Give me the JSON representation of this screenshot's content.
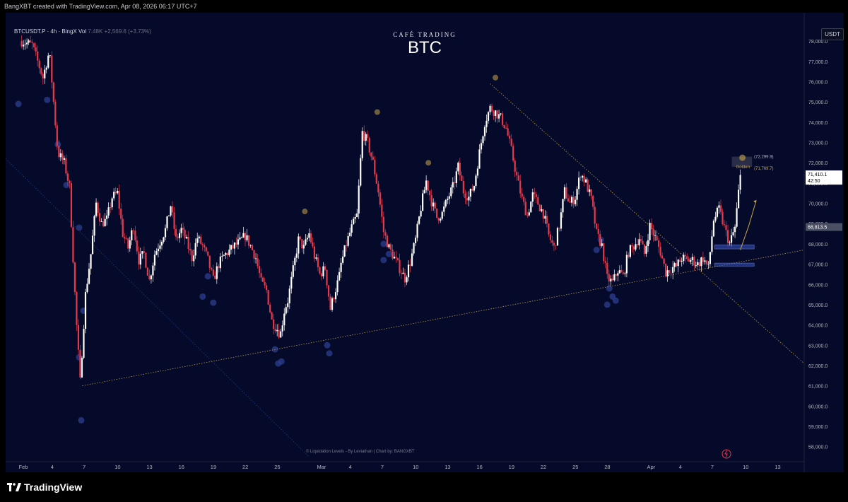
{
  "header": {
    "attribution": "BangXBT created with TradingView.com, Apr 08, 2026 06:17 UTC+7",
    "symbol": "BTCUSDT.P · 4h · BingX",
    "vol_label": "Vol",
    "vol_value": "7.48K",
    "change": "+2,569.6 (+3.73%)",
    "currency": "USDT"
  },
  "brand": {
    "small": "CAFÉ TRADING",
    "title": "BTC"
  },
  "footer": {
    "credits": "© Liquidation Levels - By Leviathan  |  Chart by: BANGXBT",
    "logo_text": "TradingView"
  },
  "colors": {
    "background": "#050a2a",
    "up": "#ffffff",
    "down": "#e6394a",
    "golden": "#c9a64a",
    "liquidity": "#2c3e8f",
    "zone": "#3a55c8"
  },
  "chart_data": {
    "type": "candlestick",
    "timeframe": "4h",
    "ylim": [
      57500,
      79400
    ],
    "y_ticks": [
      58000,
      59000,
      60000,
      61000,
      62000,
      63000,
      64000,
      65000,
      66000,
      67000,
      68000,
      69000,
      70000,
      71000,
      72000,
      73000,
      74000,
      75000,
      76000,
      77000,
      78000
    ],
    "y_tick_labels": [
      "58,000.0",
      "59,000.0",
      "60,000.0",
      "61,000.0",
      "62,000.0",
      "63,000.0",
      "64,000.0",
      "65,000.0",
      "66,000.0",
      "67,000.0",
      "68,000.0",
      "69,000.0",
      "70,000.0",
      "71,000.0",
      "72,000.0",
      "73,000.0",
      "74,000.0",
      "75,000.0",
      "76,000.0",
      "77,000.0",
      "78,000.0"
    ],
    "x_ticks": [
      {
        "label": "Feb",
        "day": 0
      },
      {
        "label": "4",
        "day": 3
      },
      {
        "label": "7",
        "day": 6
      },
      {
        "label": "10",
        "day": 9
      },
      {
        "label": "13",
        "day": 12
      },
      {
        "label": "16",
        "day": 15
      },
      {
        "label": "19",
        "day": 18
      },
      {
        "label": "22",
        "day": 21
      },
      {
        "label": "25",
        "day": 24
      },
      {
        "label": "Mar",
        "day": 28
      },
      {
        "label": "4",
        "day": 31
      },
      {
        "label": "7",
        "day": 34
      },
      {
        "label": "10",
        "day": 37
      },
      {
        "label": "13",
        "day": 40
      },
      {
        "label": "16",
        "day": 43
      },
      {
        "label": "19",
        "day": 46
      },
      {
        "label": "22",
        "day": 49
      },
      {
        "label": "25",
        "day": 52
      },
      {
        "label": "28",
        "day": 55
      },
      {
        "label": "Apr",
        "day": 59
      },
      {
        "label": "4",
        "day": 62
      },
      {
        "label": "7",
        "day": 65
      },
      {
        "label": "10",
        "day": 68
      },
      {
        "label": "13",
        "day": 71
      }
    ],
    "x_range_days": [
      -1.5,
      73.5
    ],
    "anchors": [
      [
        0,
        78000
      ],
      [
        1,
        77800
      ],
      [
        2,
        76200
      ],
      [
        2.6,
        77500
      ],
      [
        3.4,
        72500
      ],
      [
        4,
        72000
      ],
      [
        4.5,
        70800
      ],
      [
        5.1,
        64500
      ],
      [
        5.5,
        61200
      ],
      [
        6,
        65500
      ],
      [
        6.5,
        67500
      ],
      [
        7,
        70000
      ],
      [
        7.5,
        69000
      ],
      [
        8,
        69200
      ],
      [
        8.5,
        70300
      ],
      [
        9,
        70500
      ],
      [
        9.5,
        68500
      ],
      [
        10,
        67800
      ],
      [
        10.5,
        68900
      ],
      [
        11,
        67200
      ],
      [
        11.5,
        67500
      ],
      [
        12,
        66200
      ],
      [
        12.5,
        67500
      ],
      [
        13.5,
        68700
      ],
      [
        14,
        69900
      ],
      [
        14.5,
        68200
      ],
      [
        15,
        68700
      ],
      [
        15.5,
        68100
      ],
      [
        16,
        67300
      ],
      [
        16.5,
        68300
      ],
      [
        17,
        67900
      ],
      [
        17.5,
        67200
      ],
      [
        18,
        66200
      ],
      [
        18.5,
        67000
      ],
      [
        19,
        67400
      ],
      [
        20,
        67900
      ],
      [
        20.5,
        68100
      ],
      [
        21,
        68400
      ],
      [
        21.5,
        67900
      ],
      [
        22,
        67300
      ],
      [
        22.5,
        66100
      ],
      [
        23,
        65700
      ],
      [
        23.5,
        64200
      ],
      [
        24,
        63800
      ],
      [
        24.3,
        63500
      ],
      [
        24.7,
        64800
      ],
      [
        25,
        65200
      ],
      [
        25.5,
        66700
      ],
      [
        26,
        68200
      ],
      [
        26.5,
        67800
      ],
      [
        27,
        68500
      ],
      [
        27.5,
        67400
      ],
      [
        28,
        66500
      ],
      [
        28.5,
        66800
      ],
      [
        29,
        64800
      ],
      [
        29.4,
        65600
      ],
      [
        29.8,
        66300
      ],
      [
        30,
        67000
      ],
      [
        30.5,
        68000
      ],
      [
        31,
        68800
      ],
      [
        31.5,
        69400
      ],
      [
        32,
        73500
      ],
      [
        32.5,
        73000
      ],
      [
        33,
        72000
      ],
      [
        33.5,
        70600
      ],
      [
        34,
        68600
      ],
      [
        34.5,
        67800
      ],
      [
        35,
        67300
      ],
      [
        35.5,
        66800
      ],
      [
        36,
        66300
      ],
      [
        36.5,
        67100
      ],
      [
        37,
        68200
      ],
      [
        37.5,
        69800
      ],
      [
        38,
        71100
      ],
      [
        38.5,
        70100
      ],
      [
        39,
        69300
      ],
      [
        39.5,
        69500
      ],
      [
        40,
        70200
      ],
      [
        40.5,
        70800
      ],
      [
        41,
        71800
      ],
      [
        41.5,
        70600
      ],
      [
        42,
        70300
      ],
      [
        42.5,
        70900
      ],
      [
        43,
        72500
      ],
      [
        43.5,
        74000
      ],
      [
        44,
        74700
      ],
      [
        44.5,
        74500
      ],
      [
        45,
        74200
      ],
      [
        45.5,
        73700
      ],
      [
        46,
        72600
      ],
      [
        46.5,
        71300
      ],
      [
        47,
        70200
      ],
      [
        47.5,
        69400
      ],
      [
        48,
        70400
      ],
      [
        48.5,
        70000
      ],
      [
        49,
        69500
      ],
      [
        49.5,
        68400
      ],
      [
        50,
        67800
      ],
      [
        50.5,
        68900
      ],
      [
        51,
        70600
      ],
      [
        51.5,
        70000
      ],
      [
        52,
        70300
      ],
      [
        52.5,
        71500
      ],
      [
        53,
        71000
      ],
      [
        53.5,
        70200
      ],
      [
        54,
        68500
      ],
      [
        54.5,
        67900
      ],
      [
        55,
        66300
      ],
      [
        55.5,
        66100
      ],
      [
        56,
        66700
      ],
      [
        56.5,
        66400
      ],
      [
        57,
        67600
      ],
      [
        57.5,
        67900
      ],
      [
        58,
        68300
      ],
      [
        58.5,
        67500
      ],
      [
        59,
        68900
      ],
      [
        59.5,
        68300
      ],
      [
        60,
        67600
      ],
      [
        60.5,
        66600
      ],
      [
        61,
        66800
      ],
      [
        61.5,
        66900
      ],
      [
        62,
        67300
      ],
      [
        62.5,
        67200
      ],
      [
        63,
        67200
      ],
      [
        63.5,
        67000
      ],
      [
        64,
        67300
      ],
      [
        64.5,
        66800
      ],
      [
        65,
        69200
      ],
      [
        65.5,
        69700
      ],
      [
        66,
        68800
      ],
      [
        66.5,
        68000
      ],
      [
        67,
        68800
      ],
      [
        67.5,
        71400
      ]
    ],
    "projection": [
      [
        67.5,
        67700
      ],
      [
        68.3,
        68900
      ],
      [
        69,
        70150
      ]
    ],
    "annotations": {
      "upper_level": {
        "value": 72299.9,
        "label": "(72,299.9)"
      },
      "golden_label": "Golden",
      "lower_level": {
        "value": 71769.7,
        "label": "(71,769.7)"
      },
      "golden_range": [
        71800,
        72300
      ],
      "price_tag": {
        "value": 71410.1,
        "label": "71,410.1",
        "countdown": "42:50"
      },
      "prev_close_tag": {
        "value": 68813.5,
        "label": "68,813.5"
      },
      "zones": [
        {
          "from": 67750,
          "to": 67950
        },
        {
          "from": 66900,
          "to": 67050
        }
      ]
    },
    "trendlines": [
      {
        "from": [
          5.7,
          61000
        ],
        "to": [
          73.5,
          67700
        ],
        "style": "dotted-yellow"
      },
      {
        "from": [
          44,
          75900
        ],
        "to": [
          73.5,
          62100
        ],
        "style": "dotted-yellow"
      },
      {
        "from": [
          -1.5,
          72200
        ],
        "to": [
          27,
          57500
        ],
        "style": "dotted-blue"
      }
    ],
    "golden_markers": [
      [
        33.4,
        74500
      ],
      [
        44.5,
        76200
      ],
      [
        26.6,
        69600
      ],
      [
        38.2,
        72000
      ]
    ],
    "liquidity_clusters": [
      [
        -0.3,
        74900
      ],
      [
        2.4,
        75100
      ],
      [
        3.4,
        72900
      ],
      [
        4.2,
        70900
      ],
      [
        5.4,
        68800
      ],
      [
        5.8,
        64700
      ],
      [
        5.4,
        62400
      ],
      [
        5.6,
        59300
      ],
      [
        17.5,
        66400
      ],
      [
        17,
        65400
      ],
      [
        18,
        65100
      ],
      [
        23.8,
        62800
      ],
      [
        24.4,
        62200
      ],
      [
        24.1,
        62100
      ],
      [
        28.9,
        62600
      ],
      [
        28.7,
        63000
      ],
      [
        34,
        68000
      ],
      [
        34.5,
        67500
      ],
      [
        34,
        67200
      ],
      [
        55.2,
        65800
      ],
      [
        55.5,
        65400
      ],
      [
        55,
        65000
      ],
      [
        55.8,
        65200
      ],
      [
        54.4,
        68200
      ],
      [
        54,
        67700
      ]
    ]
  }
}
